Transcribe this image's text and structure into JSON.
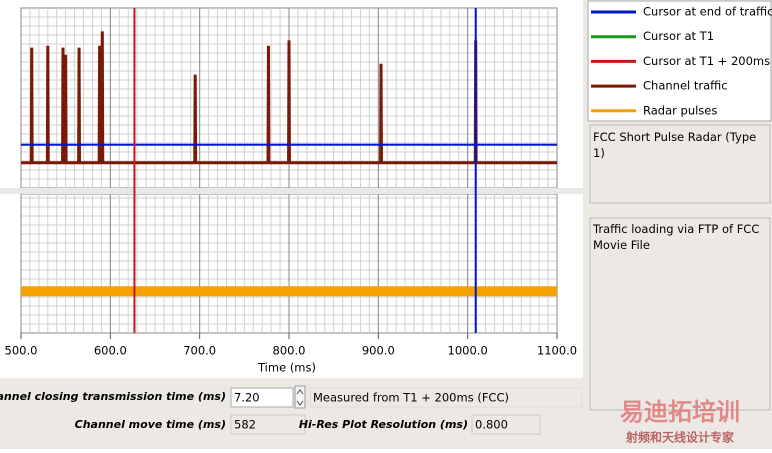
{
  "chart_data": {
    "type": "line",
    "xlabel": "Time (ms)",
    "xlim": [
      500,
      1100
    ],
    "xticks": [
      {
        "value": 500,
        "label": "500.0"
      },
      {
        "value": 600,
        "label": "600.0"
      },
      {
        "value": 700,
        "label": "700.0"
      },
      {
        "value": 800,
        "label": "800.0"
      },
      {
        "value": 900,
        "label": "900.0"
      },
      {
        "value": 1000,
        "label": "1000.0"
      },
      {
        "value": 1100,
        "label": "1100.0"
      }
    ],
    "ylim": [
      0,
      10
    ],
    "series": [
      {
        "name": "Cursor at end of traffic",
        "color": "#0018c8",
        "x": [
          1009
        ],
        "values": [
          2.4
        ]
      },
      {
        "name": "Cursor at T1",
        "color": "#1a9a1a"
      },
      {
        "name": "Cursor at T1 + 200ms",
        "color": "#c81818",
        "x": [
          627
        ]
      },
      {
        "name": "Channel traffic",
        "color": "#7a1a06",
        "plot": "top",
        "x": [
          500,
          511.5,
          512,
          512.5,
          529.5,
          530,
          530.5,
          546.5,
          547,
          547.5,
          549.5,
          550,
          550.5,
          564.5,
          565,
          565.5,
          587.5,
          588,
          588.5,
          590.5,
          591,
          591.5,
          694.5,
          695,
          695.5,
          776.5,
          777,
          777.5,
          799.5,
          800,
          800.5,
          902.5,
          903,
          903.5,
          1008.5,
          1009,
          1009.5,
          1100
        ],
        "values": [
          1.4,
          1.4,
          7.8,
          1.4,
          1.4,
          7.9,
          1.4,
          1.4,
          7.8,
          1.4,
          1.4,
          7.4,
          1.4,
          1.4,
          7.8,
          1.4,
          1.4,
          7.9,
          1.4,
          1.4,
          8.7,
          1.4,
          1.4,
          6.3,
          1.4,
          1.4,
          7.9,
          1.4,
          1.4,
          8.2,
          1.4,
          1.4,
          6.9,
          1.4,
          1.4,
          8.2,
          1.4,
          1.4
        ]
      },
      {
        "name": "Radar pulses",
        "color": "#f5a200",
        "plot": "bottom",
        "x": [
          500,
          1100
        ],
        "values": [
          3,
          3
        ]
      }
    ]
  },
  "panels": {
    "description": "FCC Short Pulse Radar (Type 1)",
    "notes": "Traffic loading via FTP of FCC Movie File"
  },
  "controls": {
    "closing_label": "Channel closing transmission time (ms)",
    "closing_value": "7.20",
    "closing_note": "Measured from T1 + 200ms (FCC)",
    "move_label": "Channel move time (ms)",
    "move_value": "582",
    "resolution_label": "Hi-Res Plot Resolution (ms)",
    "resolution_value": "0.800"
  },
  "watermark": {
    "title": "易迪拓培训",
    "subtitle": "射频和天线设计专家"
  }
}
